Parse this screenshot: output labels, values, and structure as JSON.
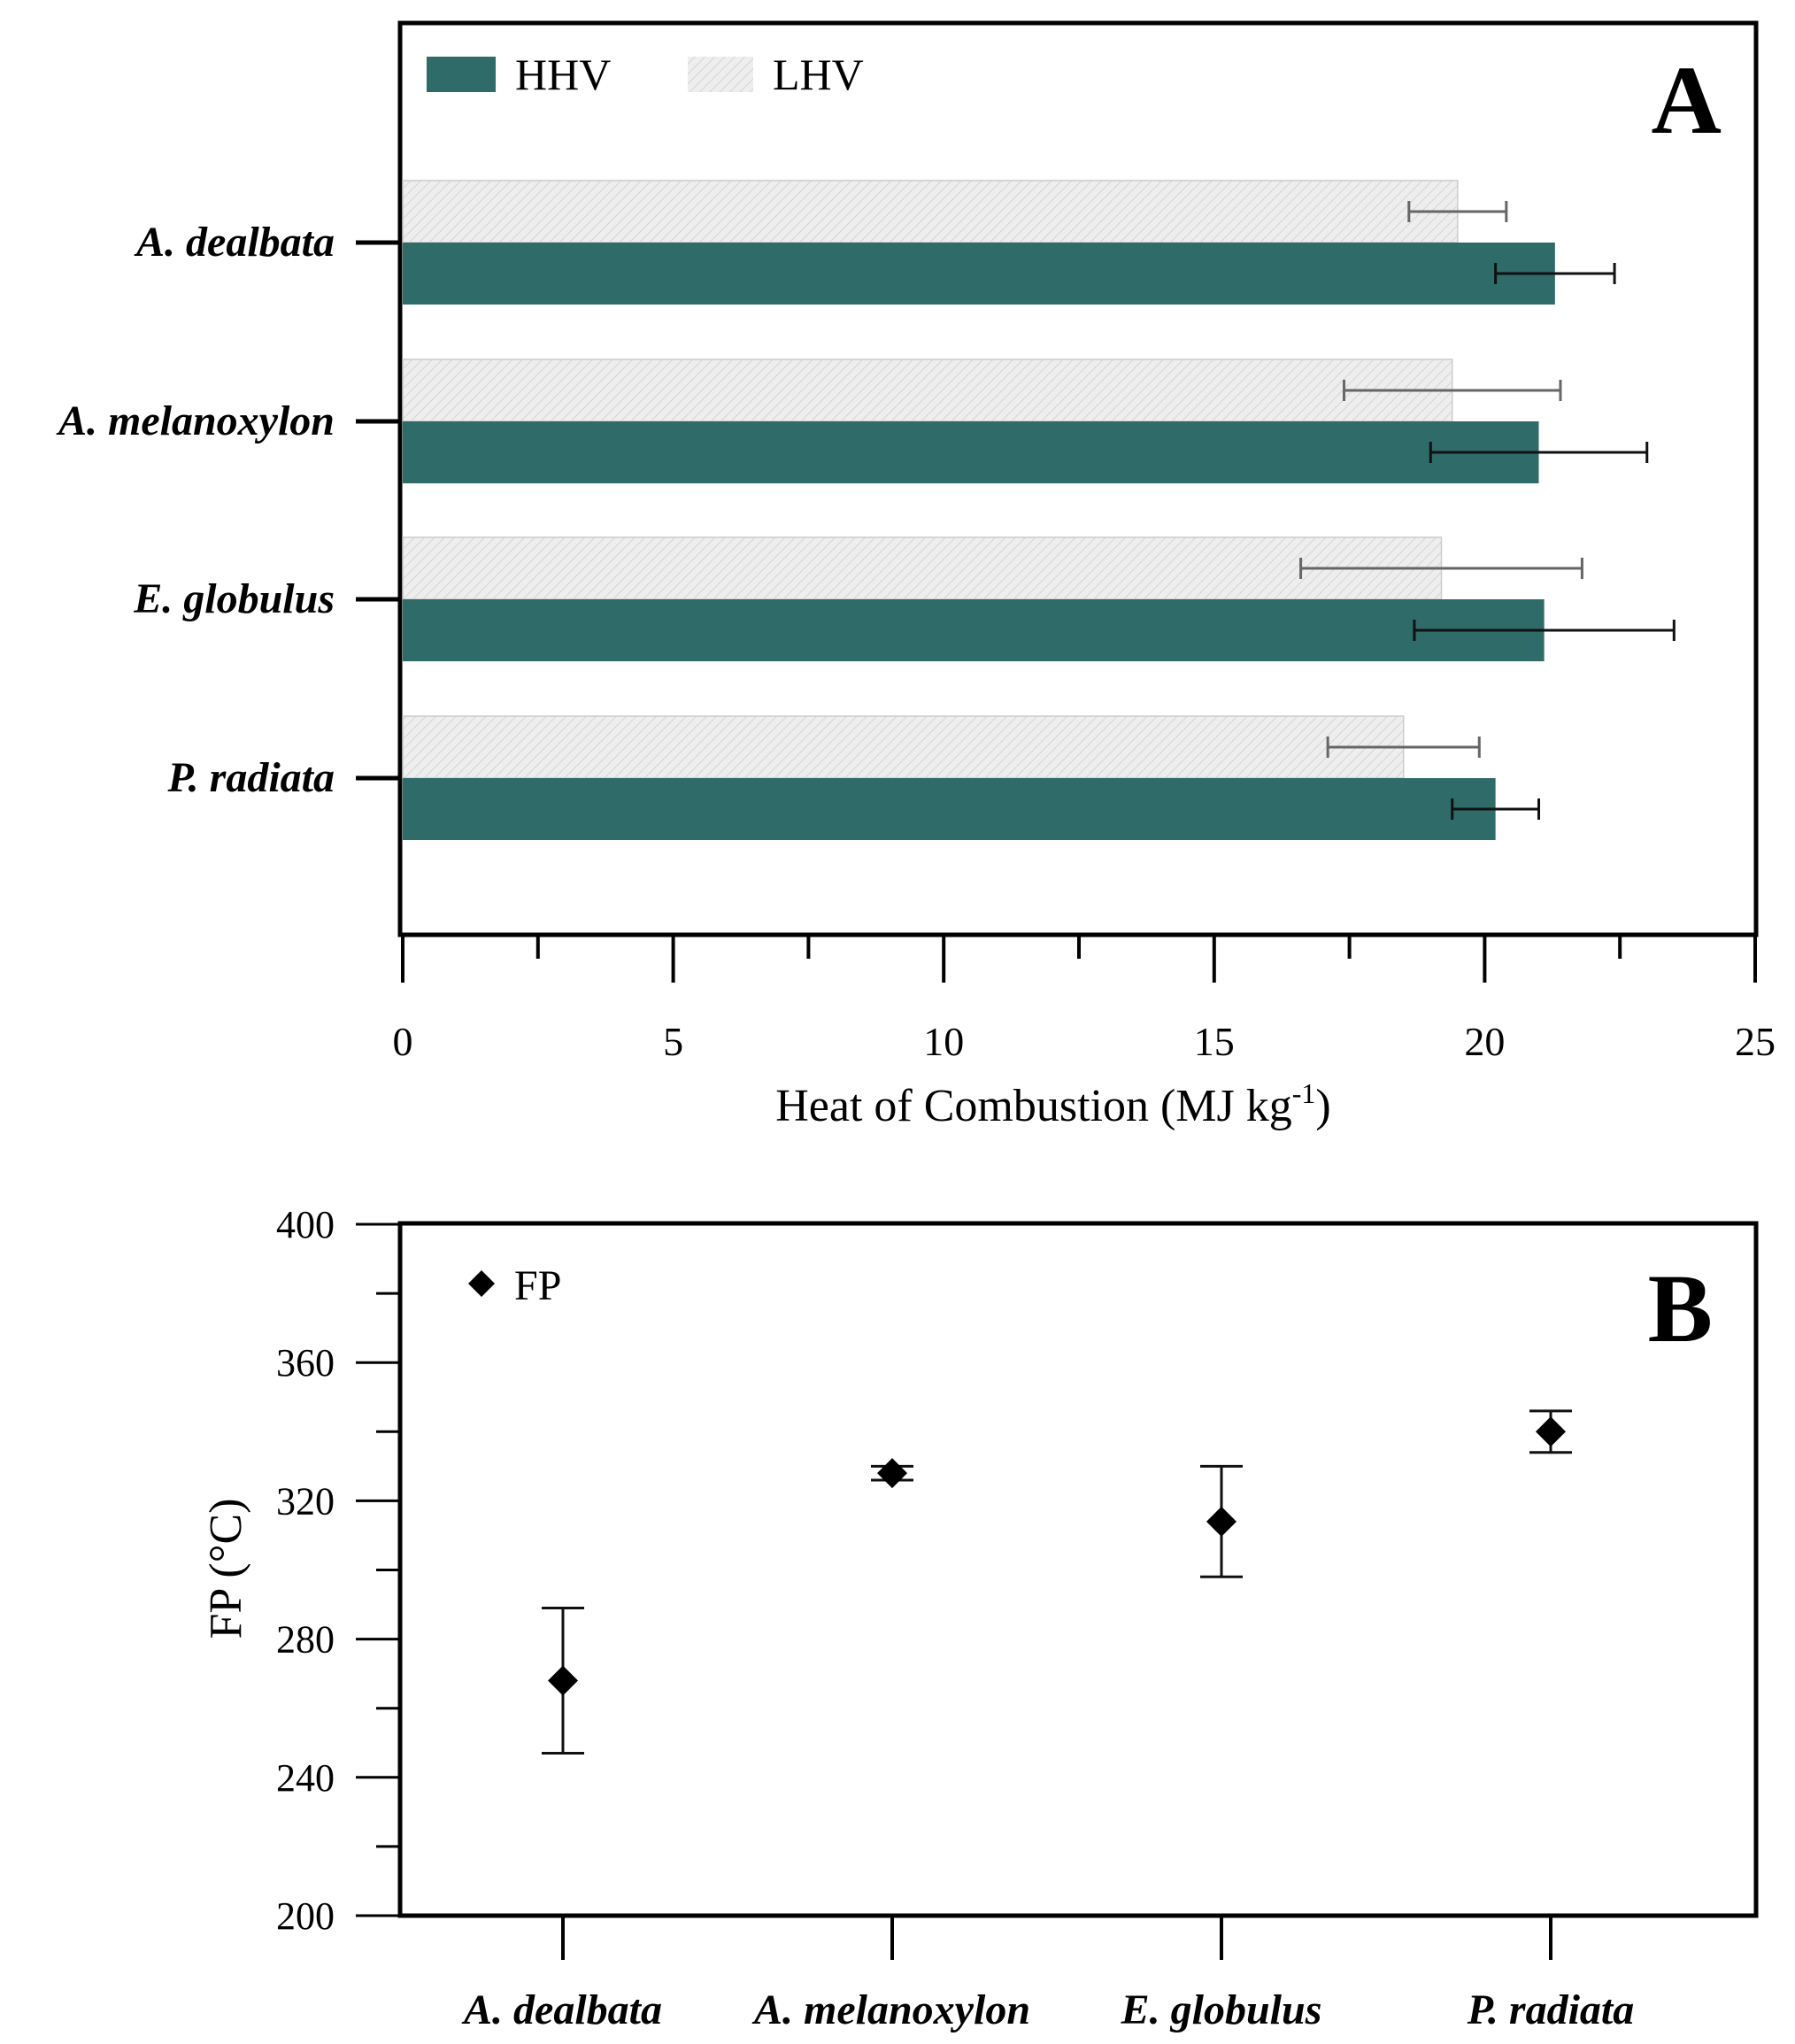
{
  "chart_data": [
    {
      "panel": "A",
      "type": "bar",
      "orientation": "horizontal",
      "categories": [
        "A. dealbata",
        "A. melanoxylon",
        "E. globulus",
        "P. radiata"
      ],
      "series": [
        {
          "name": "LHV",
          "values": [
            19.5,
            19.4,
            19.2,
            18.5
          ],
          "errors": [
            0.9,
            2.0,
            2.6,
            1.4
          ],
          "color": "#e8e8e8"
        },
        {
          "name": "HHV",
          "values": [
            21.3,
            21.0,
            21.1,
            20.2
          ],
          "errors": [
            1.1,
            2.0,
            2.4,
            0.8
          ],
          "color": "#2e6b69"
        }
      ],
      "xlabel": "Heat of Combustion (MJ kg",
      "xlabel_sup": "-1",
      "xlabel_tail": ")",
      "xlim": [
        0,
        25
      ],
      "xticks": [
        "0",
        "5",
        "10",
        "15",
        "20",
        "25"
      ],
      "legend_position": "top-left",
      "grid": false
    },
    {
      "panel": "B",
      "type": "scatter",
      "categories": [
        "A. dealbata",
        "A. melanoxylon",
        "E. globulus",
        "P. radiata"
      ],
      "series": [
        {
          "name": "FP",
          "values": [
            268,
            328,
            314,
            340
          ],
          "errors": [
            21,
            2,
            16,
            6
          ],
          "color": "#000000"
        }
      ],
      "ylabel": "FP (°C)",
      "ylim": [
        200,
        400
      ],
      "yticks": [
        "200",
        "240",
        "280",
        "320",
        "360",
        "400"
      ],
      "legend_position": "top-left",
      "grid": false
    }
  ]
}
